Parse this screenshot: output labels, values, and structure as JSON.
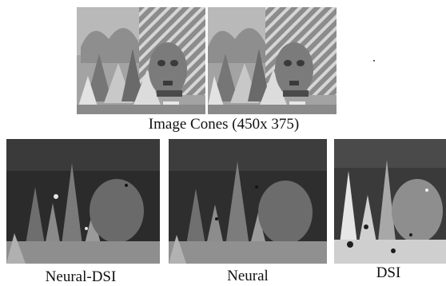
{
  "figure": {
    "top_caption": "Image Cones (450x 375)",
    "bottom_captions": {
      "neural_dsi": "Neural-DSI",
      "neural": "Neural",
      "dsi": "DSI"
    }
  },
  "stereo_pair": [
    {
      "name": "left-view"
    },
    {
      "name": "right-view"
    }
  ],
  "disparity_maps": [
    {
      "name": "neural-dsi-map",
      "label_key": "neural_dsi"
    },
    {
      "name": "neural-map",
      "label_key": "neural"
    },
    {
      "name": "dsi-map",
      "label_key": "dsi"
    }
  ],
  "colors": {
    "background": "#ffffff",
    "photo_mid_gray": "#9a9a9a",
    "disparity_dark": "#2a2a2a",
    "disparity_light": "#d8d8d8"
  }
}
